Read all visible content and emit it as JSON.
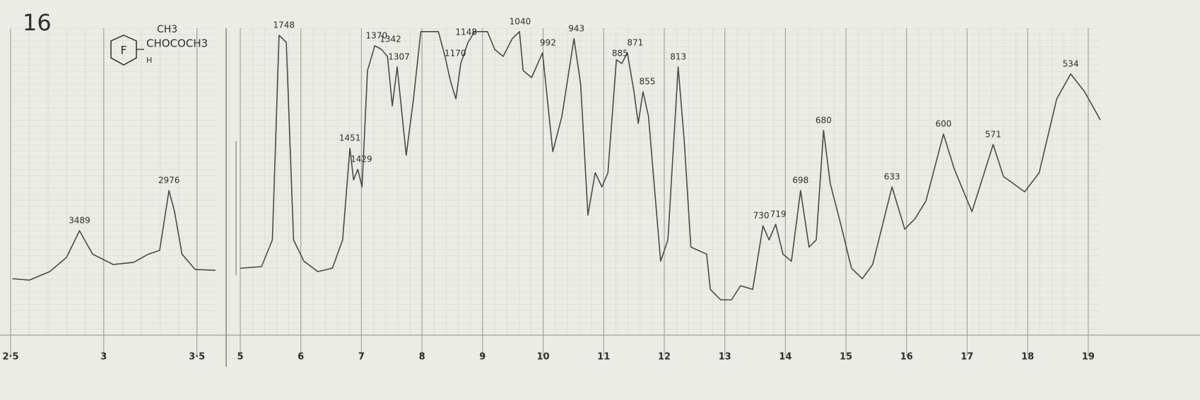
{
  "sheet_number": "16",
  "structure": {
    "ring": "F",
    "top": "CH3",
    "chain": "CHOCOCH3",
    "bottom": "H"
  },
  "chart_data": [
    {
      "type": "line",
      "color": "#4a4a48",
      "xlim": [
        2.5,
        3.6
      ],
      "ylim": [
        0,
        100
      ],
      "grid": true,
      "xticks": [
        {
          "value": 2.5,
          "label": "2·5"
        },
        3,
        {
          "value": 3.5,
          "label": "3·5"
        }
      ],
      "x": [
        2.51,
        2.6,
        2.71,
        2.8,
        2.87,
        2.94,
        3.05,
        3.16,
        3.24,
        3.3,
        3.35,
        3.38,
        3.42,
        3.49,
        3.6
      ],
      "values": [
        18.4,
        17.9,
        20.7,
        25.3,
        34.0,
        26.4,
        23.0,
        23.7,
        26.4,
        27.6,
        47.1,
        40.2,
        26.4,
        21.4,
        21.1
      ],
      "peaks": [
        {
          "label": 3489,
          "x": 2.87,
          "y": 34.0
        },
        {
          "label": 2976,
          "x": 3.35,
          "y": 47.1
        }
      ]
    },
    {
      "type": "line",
      "color": "#4a4a48",
      "xlim": [
        5,
        19.2
      ],
      "ylim": [
        0,
        100
      ],
      "grid": true,
      "xticks": [
        5,
        6,
        7,
        8,
        9,
        10,
        11,
        12,
        13,
        14,
        15,
        16,
        17,
        18,
        19
      ],
      "x": [
        5.0,
        5.35,
        5.53,
        5.64,
        5.76,
        5.88,
        6.05,
        6.28,
        6.52,
        6.69,
        6.81,
        6.87,
        6.94,
        7.01,
        7.1,
        7.22,
        7.33,
        7.43,
        7.51,
        7.59,
        7.65,
        7.74,
        7.86,
        7.98,
        8.27,
        8.38,
        8.47,
        8.56,
        8.64,
        8.76,
        8.87,
        9.08,
        9.2,
        9.34,
        9.49,
        9.61,
        9.67,
        9.81,
        9.99,
        10.16,
        10.31,
        10.51,
        10.62,
        10.74,
        10.86,
        10.97,
        11.07,
        11.21,
        11.3,
        11.39,
        11.5,
        11.57,
        11.65,
        11.74,
        11.94,
        12.06,
        12.23,
        12.33,
        12.44,
        12.56,
        12.7,
        12.76,
        12.93,
        13.11,
        13.26,
        13.46,
        13.63,
        13.73,
        13.84,
        13.96,
        14.1,
        14.25,
        14.39,
        14.51,
        14.63,
        14.74,
        14.92,
        15.09,
        15.27,
        15.44,
        15.76,
        15.97,
        16.14,
        16.32,
        16.61,
        16.79,
        17.08,
        17.43,
        17.6,
        17.95,
        18.19,
        18.48,
        18.71,
        18.94,
        19.2
      ],
      "values": [
        21.8,
        22.3,
        31.0,
        97.7,
        95.4,
        31.0,
        24.1,
        20.7,
        21.8,
        31.0,
        60.9,
        50.6,
        54.0,
        48.3,
        86.2,
        94.3,
        93.1,
        90.8,
        74.7,
        87.4,
        75.9,
        58.6,
        77.0,
        98.9,
        98.9,
        90.8,
        82.8,
        77.0,
        88.5,
        95.4,
        98.9,
        98.9,
        93.1,
        90.8,
        96.6,
        98.9,
        86.2,
        83.9,
        92.0,
        59.8,
        71.3,
        96.6,
        81.6,
        39.1,
        52.9,
        48.3,
        52.9,
        89.7,
        88.5,
        92.0,
        79.3,
        69.0,
        79.3,
        71.3,
        24.1,
        31.0,
        87.4,
        63.2,
        28.7,
        27.6,
        26.4,
        14.9,
        11.5,
        11.5,
        16.1,
        14.9,
        35.6,
        31.0,
        36.1,
        26.4,
        24.1,
        47.1,
        28.7,
        31.0,
        66.7,
        49.4,
        35.6,
        21.8,
        18.4,
        23.0,
        48.3,
        34.5,
        37.9,
        43.7,
        65.5,
        54.0,
        40.2,
        62.1,
        51.7,
        46.7,
        52.9,
        77.0,
        85.1,
        79.3,
        70.1
      ],
      "peaks": [
        {
          "label": 1748,
          "x": 5.72,
          "y": 97.7
        },
        {
          "label": 1451,
          "x": 6.81,
          "y": 60.9
        },
        {
          "label": 1429,
          "x": 7.0,
          "y": 54.0
        },
        {
          "label": 1370,
          "x": 7.25,
          "y": 94.3
        },
        {
          "label": 1342,
          "x": 7.48,
          "y": 93.1
        },
        {
          "label": 1307,
          "x": 7.62,
          "y": 87.4
        },
        {
          "label": 1170,
          "x": 8.55,
          "y": 88.5
        },
        {
          "label": 1148,
          "x": 8.73,
          "y": 95.4
        },
        {
          "label": 1040,
          "x": 9.62,
          "y": 98.9
        },
        {
          "label": 992,
          "x": 10.08,
          "y": 92.0
        },
        {
          "label": 943,
          "x": 10.55,
          "y": 96.6
        },
        {
          "label": 885,
          "x": 11.27,
          "y": 88.5
        },
        {
          "label": 871,
          "x": 11.52,
          "y": 92.0
        },
        {
          "label": 855,
          "x": 11.72,
          "y": 79.3
        },
        {
          "label": 813,
          "x": 12.23,
          "y": 87.4
        },
        {
          "label": 730,
          "x": 13.6,
          "y": 35.6
        },
        {
          "label": 719,
          "x": 13.88,
          "y": 36.1
        },
        {
          "label": 698,
          "x": 14.25,
          "y": 47.1
        },
        {
          "label": 680,
          "x": 14.63,
          "y": 66.7
        },
        {
          "label": 633,
          "x": 15.76,
          "y": 48.3
        },
        {
          "label": 600,
          "x": 16.61,
          "y": 65.5
        },
        {
          "label": 571,
          "x": 17.43,
          "y": 62.1
        },
        {
          "label": 534,
          "x": 18.71,
          "y": 85.1
        }
      ]
    }
  ]
}
